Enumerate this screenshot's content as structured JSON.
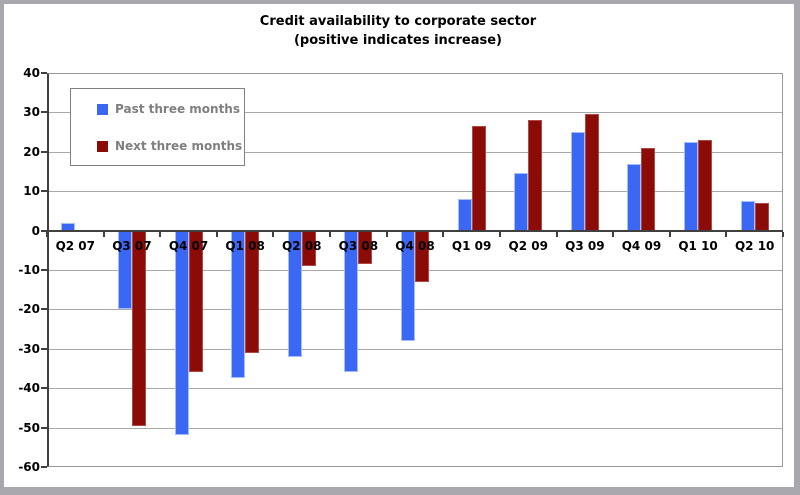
{
  "title": {
    "line1": "Credit availability to corporate sector",
    "line2": "(positive indicates increase)"
  },
  "legend": {
    "items": [
      {
        "label": "Past three months",
        "color": "#3A68F4"
      },
      {
        "label": "Next three months",
        "color": "#8B0B07"
      }
    ]
  },
  "chart_data": {
    "type": "bar",
    "title": "Credit availability to corporate sector",
    "subtitle": "(positive indicates increase)",
    "categories": [
      "Q2 07",
      "Q3 07",
      "Q4 07",
      "Q1 08",
      "Q2 08",
      "Q3 08",
      "Q4 08",
      "Q1 09",
      "Q2 09",
      "Q3 09",
      "Q4 09",
      "Q1 10",
      "Q2 10"
    ],
    "series": [
      {
        "name": "Past three months",
        "color": "#3A68F4",
        "edge_color": "#A3BEF8",
        "values": [
          2,
          -20,
          -52,
          -37.5,
          -32,
          -36,
          -28,
          8,
          14.5,
          25,
          17,
          22.5,
          7.5
        ]
      },
      {
        "name": "Next three months",
        "color": "#8B0B07",
        "edge_color": "#AE4A45",
        "values": [
          0,
          -49.5,
          -36,
          -31,
          -9,
          -8.5,
          -13,
          26.5,
          28,
          29.5,
          21,
          23,
          7
        ]
      }
    ],
    "ylim": [
      -60,
      40
    ],
    "yticks": [
      40,
      30,
      20,
      10,
      0,
      -10,
      -20,
      -30,
      -40,
      -50,
      -60
    ],
    "grid": true,
    "legend_position": "top-left-inside",
    "colors": {
      "gridline": "#A8A8A8",
      "axis": "#404040",
      "plot_border": "#999999",
      "legend_text": "#7F7F7F",
      "legend_border": "#808080",
      "outer_frame": "#A7A7AD",
      "title_text": "#000000"
    }
  }
}
